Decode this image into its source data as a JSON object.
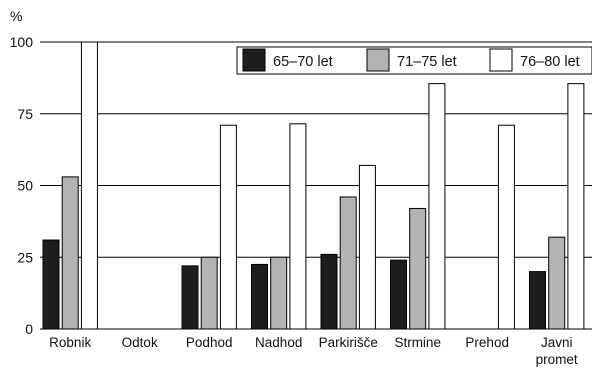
{
  "chart_data": {
    "type": "bar",
    "ylabel": "%",
    "ylim": [
      0,
      100
    ],
    "yticks": [
      0,
      25,
      50,
      75,
      100
    ],
    "grid": true,
    "legend_position": "top-right",
    "categories": [
      "Robnik",
      "Odtok",
      "Podhod",
      "Nadhod",
      "Parkirišče",
      "Strmine",
      "Prehod",
      "Javni promet"
    ],
    "series": [
      {
        "name": "65–70 let",
        "color": "#1e1e1e",
        "values": [
          31,
          null,
          22,
          22.5,
          26,
          24,
          null,
          20
        ]
      },
      {
        "name": "71–75 let",
        "color": "#b3b3b3",
        "values": [
          53,
          null,
          25,
          25,
          46,
          42,
          null,
          32
        ]
      },
      {
        "name": "76–80 let",
        "color": "#ffffff",
        "values": [
          100,
          null,
          71,
          71.5,
          57,
          85.5,
          71,
          85.5
        ]
      }
    ]
  }
}
